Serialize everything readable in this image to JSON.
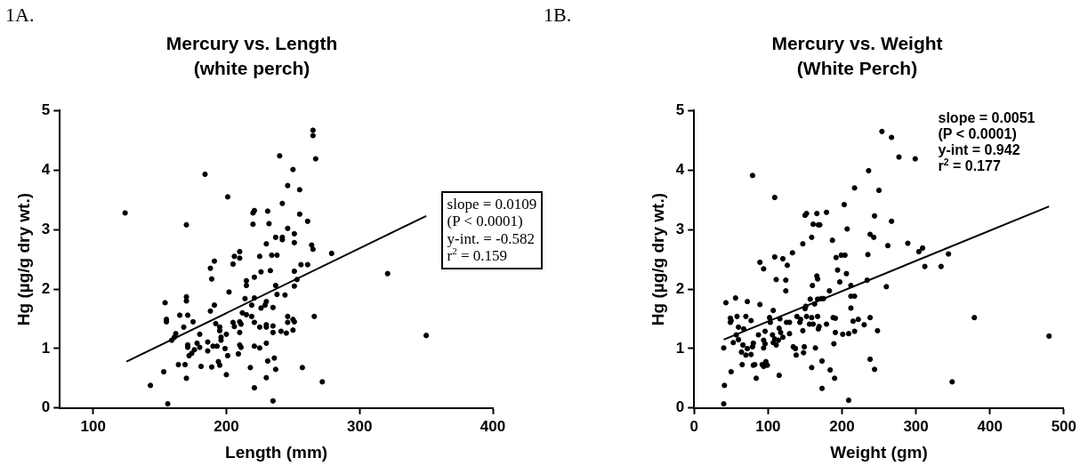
{
  "chart_data": [
    {
      "type": "scatter",
      "title": "Mercury vs. Length",
      "subtitle": "(white perch)",
      "xlabel": "Length (mm)",
      "ylabel": "Hg (µg/g dry wt.)",
      "xlim": [
        75,
        400
      ],
      "xticks": [
        100,
        200,
        300,
        400
      ],
      "ylim": [
        0,
        5
      ],
      "yticks": [
        0,
        1,
        2,
        3,
        4,
        5
      ],
      "marker": "circle",
      "legend": false,
      "annotations": [
        "1A.",
        "slope = 0.0109",
        "(P < 0.0001)",
        "y-int. = -0.582",
        "r$^{2}$ = 0.159"
      ],
      "series": [
        {
          "type": "scatter",
          "color": "#000000",
          "x": [
            124,
            143,
            153,
            156,
            154,
            155,
            155,
            159,
            161,
            162,
            164,
            165,
            168,
            169,
            170,
            170,
            170,
            170,
            171,
            171,
            171,
            172,
            174,
            175,
            176,
            178,
            180,
            180,
            181,
            184,
            186,
            186,
            188,
            188,
            189,
            189,
            191,
            191,
            190,
            192,
            193,
            195,
            195,
            196,
            196,
            194,
            195,
            201,
            199,
            200,
            200,
            201,
            202,
            206,
            205,
            205,
            206,
            209,
            210,
            210,
            210,
            211,
            210,
            210,
            211,
            212,
            214,
            215,
            215,
            215,
            218,
            219,
            219,
            220,
            221,
            220,
            221,
            221,
            221,
            221,
            221,
            225,
            225,
            225,
            226,
            226,
            229,
            230,
            230,
            230,
            230,
            230,
            230,
            231,
            231,
            232,
            233,
            234,
            235,
            235,
            235,
            235,
            236,
            237,
            237,
            237,
            238,
            238,
            240,
            241,
            242,
            242,
            242,
            244,
            245,
            246,
            246,
            246,
            246,
            250,
            251,
            251,
            251,
            251,
            253,
            250,
            251,
            250,
            255,
            255,
            256,
            257,
            261,
            261,
            265,
            265,
            267,
            264,
            265,
            279,
            321,
            266,
            350,
            272
          ],
          "values": [
            3.28,
            0.38,
            0.61,
            0.07,
            1.77,
            1.49,
            1.45,
            1.14,
            1.19,
            1.25,
            0.73,
            1.56,
            1.36,
            0.73,
            3.08,
            1.87,
            1.8,
            0.5,
            1.56,
            1.06,
            1.02,
            0.88,
            0.92,
            1.45,
            0.98,
            1.09,
            1.02,
            1.24,
            0.7,
            3.93,
            0.96,
            1.11,
            1.63,
            2.35,
            2.17,
            0.69,
            2.47,
            1.73,
            1.04,
            1.42,
            1.04,
            1.36,
            1.3,
            1.19,
            1.14,
            0.78,
            0.72,
            3.55,
            1.0,
            1.24,
            0.56,
            0.88,
            1.95,
            2.55,
            2.42,
            1.44,
            1.37,
            0.91,
            2.63,
            2.52,
            1.45,
            1.41,
            1.27,
            1.06,
            1.02,
            1.6,
            1.84,
            2.14,
            2.06,
            1.57,
            0.68,
            1.54,
            1.73,
            3.28,
            3.32,
            3.09,
            2.2,
            1.04,
            0.34,
            1.85,
            1.44,
            1.36,
            2.55,
            1.01,
            1.68,
            2.29,
            1.73,
            1.79,
            1.4,
            1.36,
            2.76,
            0.51,
            1.09,
            3.31,
            0.79,
            3.1,
            2.31,
            2.57,
            1.38,
            1.27,
            1.69,
            0.12,
            0.84,
            2.87,
            2.06,
            0.65,
            2.57,
            1.91,
            4.24,
            1.29,
            3.44,
            2.87,
            2.83,
            1.9,
            1.26,
            3.02,
            1.54,
            1.44,
            3.74,
            4.01,
            2.05,
            2.3,
            2.78,
            2.93,
            2.16,
            1.49,
            1.45,
            1.31,
            3.67,
            3.26,
            2.41,
            0.68,
            3.14,
            2.41,
            4.67,
            4.58,
            4.19,
            2.74,
            2.67,
            2.6,
            2.26,
            1.54,
            1.22,
            0.44
          ]
        },
        {
          "type": "line",
          "color": "#000000",
          "marker": "none",
          "x": [
            125,
            350
          ],
          "values": [
            0.78,
            3.23
          ]
        }
      ]
    },
    {
      "type": "scatter",
      "title": "Mercury vs. Weight",
      "subtitle": "(White Perch)",
      "xlabel": "Weight (gm)",
      "ylabel": "Hg (µg/g dry wt.)",
      "xlim": [
        0,
        500
      ],
      "xticks": [
        0,
        100,
        200,
        300,
        400,
        500
      ],
      "ylim": [
        0,
        5
      ],
      "yticks": [
        0,
        1,
        2,
        3,
        4,
        5
      ],
      "marker": "circle",
      "legend": false,
      "annotations": [
        "1B.",
        "slope = 0.0051",
        "(P < 0.0001)",
        "y-int = 0.942",
        "r$^{2}$ = 0.177"
      ],
      "series": [
        {
          "type": "scatter",
          "color": "#000000",
          "x": [
            40,
            41,
            40,
            43,
            50,
            49,
            50,
            49,
            53,
            56,
            57,
            58,
            60,
            60,
            64,
            65,
            66,
            67,
            70,
            70,
            72,
            72,
            77,
            77,
            79,
            79,
            80,
            80,
            82,
            84,
            87,
            89,
            89,
            92,
            94,
            94,
            94,
            96,
            94,
            96,
            97,
            99,
            102,
            103,
            106,
            107,
            107,
            109,
            109,
            109,
            111,
            111,
            114,
            115,
            115,
            116,
            117,
            120,
            120,
            124,
            124,
            126,
            125,
            129,
            129,
            133,
            134,
            137,
            138,
            139,
            143,
            144,
            147,
            147,
            148,
            149,
            150,
            151,
            150,
            152,
            152,
            156,
            157,
            159,
            159,
            159,
            160,
            161,
            161,
            163,
            164,
            166,
            166,
            167,
            167,
            167,
            168,
            169,
            168,
            170,
            172,
            173,
            173,
            175,
            179,
            179,
            183,
            184,
            187,
            188,
            191,
            189,
            190,
            191,
            192,
            194,
            197,
            199,
            204,
            201,
            203,
            206,
            207,
            209,
            209,
            212,
            212,
            212,
            215,
            217,
            217,
            217,
            222,
            230,
            236,
            235,
            234,
            238,
            243,
            238,
            238,
            244,
            244,
            248,
            250,
            254,
            260,
            262,
            267,
            267,
            277,
            289,
            299,
            304,
            309,
            312,
            334,
            344,
            349,
            379,
            480
          ],
          "values": [
            0.07,
            0.38,
            1.01,
            1.77,
            0.61,
            1.51,
            1.47,
            1.44,
            1.1,
            1.85,
            1.23,
            1.54,
            1.36,
            1.15,
            0.94,
            0.73,
            1.06,
            1.33,
            0.89,
            1.54,
            1.79,
            1.0,
            1.47,
            0.9,
            3.91,
            1.03,
            1.09,
            0.72,
            0.73,
            0.5,
            1.23,
            2.45,
            1.74,
            0.73,
            0.7,
            2.34,
            1.01,
            1.08,
            1.14,
            1.29,
            0.78,
            0.72,
            1.52,
            1.44,
            1.23,
            1.64,
            1.1,
            3.54,
            2.54,
            1.16,
            1.06,
            2.16,
            1.14,
            0.55,
            1.34,
            1.5,
            1.27,
            2.51,
            1.19,
            1.97,
            2.15,
            2.4,
            1.44,
            1.44,
            1.25,
            2.61,
            1.03,
            1.0,
            0.89,
            1.54,
            1.44,
            1.49,
            2.76,
            1.3,
            0.93,
            1.03,
            1.67,
            1.71,
            3.24,
            3.27,
            1.54,
            1.41,
            1.83,
            1.52,
            2.87,
            0.68,
            2.06,
            3.09,
            1.41,
            1.75,
            1.01,
            3.27,
            2.22,
            2.17,
            1.83,
            1.54,
            1.33,
            1.37,
            3.08,
            3.08,
            1.84,
            0.79,
            0.33,
            1.84,
            3.29,
            1.41,
            1.97,
            0.64,
            2.82,
            1.52,
            1.51,
            1.08,
            0.5,
            1.27,
            2.53,
            2.32,
            2.12,
            2.57,
            2.57,
            1.24,
            3.42,
            2.26,
            3.01,
            1.25,
            0.13,
            2.06,
            1.68,
            1.88,
            1.46,
            1.88,
            3.7,
            1.29,
            1.49,
            1.4,
            3.99,
            2.58,
            2.15,
            2.92,
            2.87,
            1.52,
            0.82,
            3.23,
            0.65,
            1.3,
            3.66,
            4.65,
            2.04,
            2.73,
            4.55,
            3.14,
            4.22,
            2.77,
            4.19,
            2.63,
            2.69,
            2.38,
            2.38,
            2.59,
            0.44,
            1.52,
            1.21
          ]
        },
        {
          "type": "line",
          "color": "#000000",
          "marker": "none",
          "x": [
            40,
            480
          ],
          "values": [
            1.15,
            3.39
          ]
        }
      ]
    }
  ]
}
